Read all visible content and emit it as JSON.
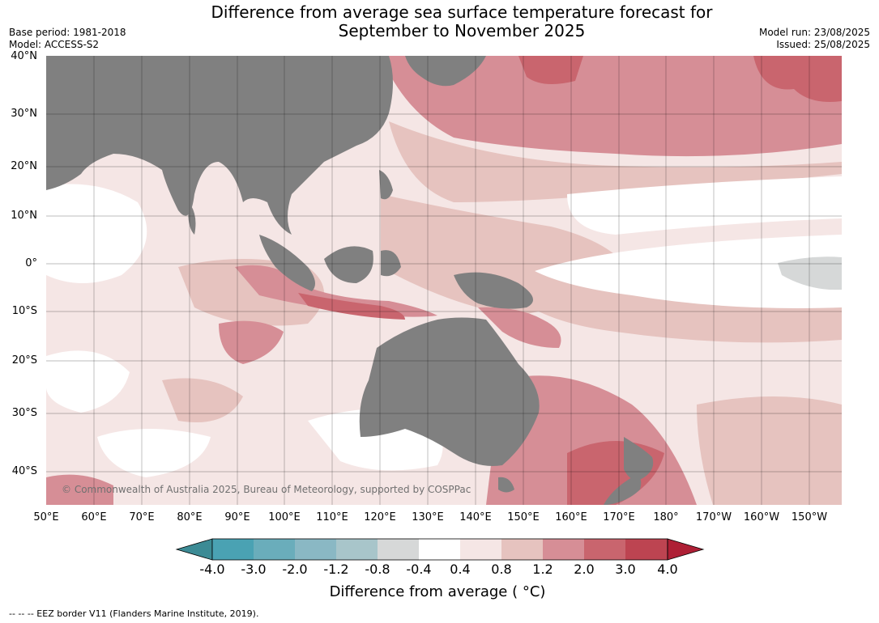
{
  "title_line1": "Difference from average sea surface temperature forecast for",
  "title_line2": "September to November 2025",
  "base_period": "Base period: 1981-2018",
  "model": "Model: ACCESS-S2",
  "model_run": "Model run: 23/08/2025",
  "issued": "Issued: 25/08/2025",
  "lat_labels": [
    "40°N",
    "30°N",
    "20°N",
    "10°N",
    "0°",
    "10°S",
    "20°S",
    "30°S",
    "40°S"
  ],
  "lon_labels": [
    "50°E",
    "60°E",
    "70°E",
    "80°E",
    "90°E",
    "100°E",
    "110°E",
    "120°E",
    "130°E",
    "140°E",
    "150°E",
    "160°E",
    "170°E",
    "180°",
    "170°W",
    "160°W",
    "150°W"
  ],
  "copyright": "© Commonwealth of Australia 2025, Bureau of Meteorology, supported by COSPPac",
  "colorbar": {
    "ticks": [
      "-4.0",
      "-3.0",
      "-2.0",
      "-1.2",
      "-0.8",
      "-0.4",
      "0.4",
      "0.8",
      "1.2",
      "2.0",
      "3.0",
      "4.0"
    ],
    "colors": [
      "#3c8b95",
      "#4aa2b3",
      "#6aadbb",
      "#8ab8c4",
      "#a8c5ca",
      "#d6d8d8",
      "#ffffff",
      "#f5e6e5",
      "#e6c3bf",
      "#d68e96",
      "#c9656e",
      "#bd4451",
      "#ae1f35"
    ],
    "label": "Difference from average ( °C)"
  },
  "footer": "--  --  -- EEZ border V11 (Flanders Marine Institute, 2019).",
  "land_color": "#808080"
}
